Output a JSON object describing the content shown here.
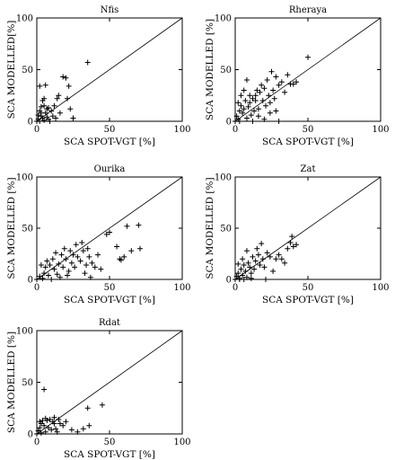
{
  "chart_data": [
    {
      "type": "scatter",
      "title": "Nfis",
      "xlabel": "SCA SPOT-VGT [%]",
      "ylabel": "SCA MODELLED[%]",
      "xlim": [
        0,
        100
      ],
      "ylim": [
        0,
        100
      ],
      "xticks": [
        "0",
        "50",
        "100"
      ],
      "yticks": [
        "0",
        "50",
        "100"
      ],
      "marker": "+",
      "reference_line": "1:1",
      "points": [
        [
          0,
          0
        ],
        [
          1,
          2
        ],
        [
          2,
          0
        ],
        [
          3,
          5
        ],
        [
          4,
          3
        ],
        [
          5,
          1
        ],
        [
          6,
          8
        ],
        [
          7,
          4
        ],
        [
          8,
          2
        ],
        [
          2,
          10
        ],
        [
          3,
          14
        ],
        [
          4,
          20
        ],
        [
          5,
          22
        ],
        [
          2,
          34
        ],
        [
          6,
          35
        ],
        [
          8,
          13
        ],
        [
          10,
          10
        ],
        [
          11,
          5
        ],
        [
          12,
          15
        ],
        [
          13,
          3
        ],
        [
          14,
          22
        ],
        [
          15,
          25
        ],
        [
          16,
          8
        ],
        [
          18,
          43
        ],
        [
          20,
          42
        ],
        [
          21,
          22
        ],
        [
          22,
          34
        ],
        [
          23,
          12
        ],
        [
          25,
          3
        ],
        [
          35,
          57
        ],
        [
          1,
          6
        ],
        [
          3,
          8
        ],
        [
          9,
          0
        ],
        [
          5,
          15
        ],
        [
          7,
          12
        ]
      ]
    },
    {
      "type": "scatter",
      "title": "Rheraya",
      "xlabel": "SCA SPOT-VGT [%]",
      "ylabel": "SCA MODELLED [%]",
      "xlim": [
        0,
        100
      ],
      "ylim": [
        0,
        100
      ],
      "xticks": [
        "0",
        "50",
        "100"
      ],
      "yticks": [
        "0",
        "50",
        "100"
      ],
      "marker": "+",
      "reference_line": "1:1",
      "points": [
        [
          0,
          0
        ],
        [
          1,
          5
        ],
        [
          2,
          2
        ],
        [
          3,
          10
        ],
        [
          4,
          15
        ],
        [
          5,
          8
        ],
        [
          6,
          12
        ],
        [
          7,
          20
        ],
        [
          8,
          3
        ],
        [
          9,
          14
        ],
        [
          10,
          18
        ],
        [
          11,
          6
        ],
        [
          12,
          22
        ],
        [
          13,
          10
        ],
        [
          14,
          25
        ],
        [
          15,
          30
        ],
        [
          16,
          12
        ],
        [
          17,
          28
        ],
        [
          18,
          35
        ],
        [
          19,
          20
        ],
        [
          20,
          32
        ],
        [
          21,
          15
        ],
        [
          22,
          40
        ],
        [
          23,
          25
        ],
        [
          24,
          18
        ],
        [
          25,
          48
        ],
        [
          26,
          30
        ],
        [
          27,
          22
        ],
        [
          28,
          43
        ],
        [
          30,
          35
        ],
        [
          32,
          38
        ],
        [
          34,
          28
        ],
        [
          36,
          45
        ],
        [
          38,
          36
        ],
        [
          40,
          36
        ],
        [
          42,
          38
        ],
        [
          50,
          62
        ],
        [
          2,
          18
        ],
        [
          4,
          25
        ],
        [
          6,
          30
        ],
        [
          3,
          0
        ],
        [
          8,
          40
        ],
        [
          12,
          0
        ],
        [
          16,
          5
        ],
        [
          20,
          2
        ],
        [
          24,
          8
        ],
        [
          28,
          10
        ],
        [
          30,
          0
        ],
        [
          10,
          25
        ],
        [
          14,
          20
        ]
      ]
    },
    {
      "type": "scatter",
      "title": "Ourika",
      "xlabel": "SCA SPOT-VGT [%]",
      "ylabel": "SCA MODELLED [%]",
      "xlim": [
        0,
        100
      ],
      "ylim": [
        0,
        100
      ],
      "xticks": [
        "0",
        "50",
        "100"
      ],
      "yticks": [
        "0",
        "50",
        "100"
      ],
      "marker": "+",
      "reference_line": "1:1",
      "points": [
        [
          0,
          0
        ],
        [
          2,
          3
        ],
        [
          4,
          1
        ],
        [
          5,
          6
        ],
        [
          6,
          12
        ],
        [
          8,
          4
        ],
        [
          9,
          14
        ],
        [
          10,
          0
        ],
        [
          12,
          10
        ],
        [
          14,
          5
        ],
        [
          15,
          15
        ],
        [
          16,
          2
        ],
        [
          18,
          12
        ],
        [
          20,
          20
        ],
        [
          22,
          8
        ],
        [
          24,
          16
        ],
        [
          25,
          24
        ],
        [
          26,
          12
        ],
        [
          28,
          22
        ],
        [
          30,
          18
        ],
        [
          31,
          36
        ],
        [
          32,
          28
        ],
        [
          34,
          14
        ],
        [
          35,
          30
        ],
        [
          36,
          22
        ],
        [
          38,
          16
        ],
        [
          40,
          12
        ],
        [
          42,
          24
        ],
        [
          44,
          10
        ],
        [
          48,
          44
        ],
        [
          50,
          46
        ],
        [
          55,
          32
        ],
        [
          57,
          20
        ],
        [
          58,
          19
        ],
        [
          60,
          22
        ],
        [
          62,
          52
        ],
        [
          65,
          28
        ],
        [
          70,
          53
        ],
        [
          71,
          30
        ],
        [
          3,
          14
        ],
        [
          7,
          18
        ],
        [
          11,
          20
        ],
        [
          13,
          26
        ],
        [
          17,
          24
        ],
        [
          19,
          30
        ],
        [
          23,
          28
        ],
        [
          27,
          34
        ],
        [
          21,
          4
        ],
        [
          33,
          6
        ],
        [
          37,
          2
        ]
      ]
    },
    {
      "type": "scatter",
      "title": "Zat",
      "xlabel": "SCA SPOT-VGT [%]",
      "ylabel": "SCA MODELLED [%]",
      "xlim": [
        0,
        100
      ],
      "ylim": [
        0,
        100
      ],
      "xticks": [
        "0",
        "50",
        "100"
      ],
      "yticks": [
        "0",
        "50",
        "100"
      ],
      "marker": "+",
      "reference_line": "1:1",
      "points": [
        [
          0,
          0
        ],
        [
          1,
          3
        ],
        [
          2,
          6
        ],
        [
          3,
          1
        ],
        [
          4,
          10
        ],
        [
          5,
          4
        ],
        [
          6,
          14
        ],
        [
          7,
          8
        ],
        [
          8,
          2
        ],
        [
          9,
          16
        ],
        [
          10,
          12
        ],
        [
          11,
          6
        ],
        [
          12,
          22
        ],
        [
          13,
          10
        ],
        [
          14,
          18
        ],
        [
          15,
          30
        ],
        [
          16,
          24
        ],
        [
          17,
          14
        ],
        [
          18,
          35
        ],
        [
          19,
          20
        ],
        [
          20,
          12
        ],
        [
          22,
          26
        ],
        [
          24,
          22
        ],
        [
          26,
          8
        ],
        [
          28,
          20
        ],
        [
          30,
          24
        ],
        [
          32,
          20
        ],
        [
          34,
          16
        ],
        [
          36,
          30
        ],
        [
          38,
          36
        ],
        [
          39,
          42
        ],
        [
          40,
          32
        ],
        [
          42,
          34
        ],
        [
          2,
          15
        ],
        [
          5,
          20
        ],
        [
          8,
          28
        ],
        [
          3,
          0
        ],
        [
          11,
          1
        ],
        [
          21,
          0
        ],
        [
          6,
          0
        ]
      ]
    },
    {
      "type": "scatter",
      "title": "Rdat",
      "xlabel": "SCA SPOT-VGT [%]",
      "ylabel": "SCA MODELLED [%]",
      "xlim": [
        0,
        100
      ],
      "ylim": [
        0,
        100
      ],
      "xticks": [
        "0",
        "50",
        "100"
      ],
      "yticks": [
        "0",
        "50",
        "100"
      ],
      "marker": "+",
      "reference_line": "1:1",
      "points": [
        [
          0,
          0
        ],
        [
          1,
          3
        ],
        [
          2,
          6
        ],
        [
          3,
          1
        ],
        [
          4,
          13
        ],
        [
          5,
          8
        ],
        [
          6,
          2
        ],
        [
          7,
          13
        ],
        [
          8,
          6
        ],
        [
          9,
          14
        ],
        [
          10,
          4
        ],
        [
          11,
          12
        ],
        [
          12,
          10
        ],
        [
          13,
          5
        ],
        [
          14,
          2
        ],
        [
          15,
          14
        ],
        [
          16,
          10
        ],
        [
          5,
          43
        ],
        [
          35,
          25
        ],
        [
          45,
          28
        ],
        [
          32,
          5
        ],
        [
          36,
          8
        ],
        [
          20,
          12
        ],
        [
          24,
          4
        ],
        [
          28,
          2
        ],
        [
          3,
          10
        ],
        [
          2,
          12
        ],
        [
          6,
          15
        ],
        [
          12,
          16
        ],
        [
          18,
          8
        ]
      ]
    }
  ]
}
